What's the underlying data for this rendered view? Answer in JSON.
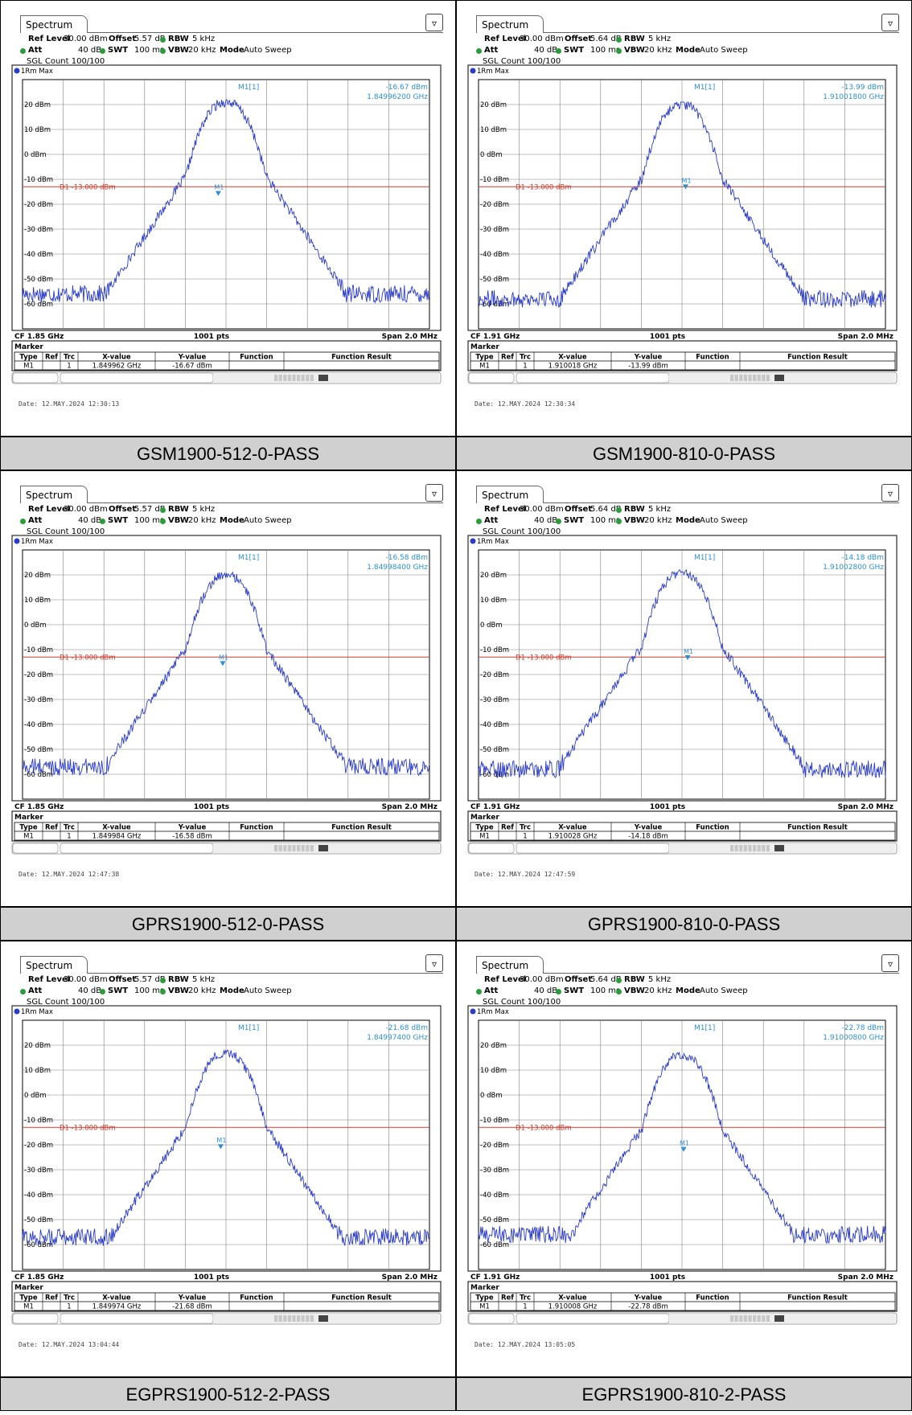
{
  "chart_data": [
    {
      "type": "line",
      "tab_label": "Spectrum",
      "ref_level": "30.00 dBm",
      "offset": "5.57 dB",
      "rbw": "5 kHz",
      "att": "40 dB",
      "swt": "100 ms",
      "vbw": "20 kHz",
      "mode": "Auto Sweep",
      "sgl_count": "SGL Count 100/100",
      "trace_label": "1Rm Max",
      "marker_name": "M1[1]",
      "marker_level": "-16.67 dBm",
      "marker_freq": "1.84996200 GHz",
      "limit_label": "D1  -13.000 dBm",
      "limit_dbm": -13,
      "cf": "CF 1.85 GHz",
      "pts": "1001 pts",
      "span": "Span 2.0 MHz",
      "marker_table": {
        "type": "M1",
        "ref": "",
        "trc": "1",
        "x": "1.849962 GHz",
        "y": "-16.67 dBm",
        "function": "",
        "result": ""
      },
      "date": "Date: 12.MAY.2024  12:30:13",
      "caption": "GSM1900-512-0-PASS",
      "center_mhz": 1850,
      "peak_offset_khz": 0,
      "peak_dbm": 21,
      "floor_dbm": -56,
      "marker_offset_khz": -38,
      "marker_dbm": -16.67
    },
    {
      "type": "line",
      "tab_label": "Spectrum",
      "ref_level": "30.00 dBm",
      "offset": "5.64 dB",
      "rbw": "5 kHz",
      "att": "40 dB",
      "swt": "100 ms",
      "vbw": "20 kHz",
      "mode": "Auto Sweep",
      "sgl_count": "SGL Count 100/100",
      "trace_label": "1Rm Max",
      "marker_name": "M1[1]",
      "marker_level": "-13.99 dBm",
      "marker_freq": "1.91001800 GHz",
      "limit_label": "D1  -13.000 dBm",
      "limit_dbm": -13,
      "cf": "CF 1.91 GHz",
      "pts": "1001 pts",
      "span": "Span 2.0 MHz",
      "marker_table": {
        "type": "M1",
        "ref": "",
        "trc": "1",
        "x": "1.910018 GHz",
        "y": "-13.99 dBm",
        "function": "",
        "result": ""
      },
      "date": "Date: 12.MAY.2024  12:30:34",
      "caption": "GSM1900-810-0-PASS",
      "center_mhz": 1910,
      "peak_offset_khz": 0,
      "peak_dbm": 20,
      "floor_dbm": -58,
      "marker_offset_khz": 18,
      "marker_dbm": -13.99
    },
    {
      "type": "line",
      "tab_label": "Spectrum",
      "ref_level": "30.00 dBm",
      "offset": "5.57 dB",
      "rbw": "5 kHz",
      "att": "40 dB",
      "swt": "100 ms",
      "vbw": "20 kHz",
      "mode": "Auto Sweep",
      "sgl_count": "SGL Count 100/100",
      "trace_label": "1Rm Max",
      "marker_name": "M1[1]",
      "marker_level": "-16.58 dBm",
      "marker_freq": "1.84998400 GHz",
      "limit_label": "D1  -13.000 dBm",
      "limit_dbm": -13,
      "cf": "CF 1.85 GHz",
      "pts": "1001 pts",
      "span": "Span 2.0 MHz",
      "marker_table": {
        "type": "M1",
        "ref": "",
        "trc": "1",
        "x": "1.849984 GHz",
        "y": "-16.58 dBm",
        "function": "",
        "result": ""
      },
      "date": "Date: 12.MAY.2024  12:47:38",
      "caption": "GPRS1900-512-0-PASS",
      "center_mhz": 1850,
      "peak_offset_khz": 0,
      "peak_dbm": 20,
      "floor_dbm": -57,
      "marker_offset_khz": -16,
      "marker_dbm": -16.58
    },
    {
      "type": "line",
      "tab_label": "Spectrum",
      "ref_level": "30.00 dBm",
      "offset": "5.64 dB",
      "rbw": "5 kHz",
      "att": "40 dB",
      "swt": "100 ms",
      "vbw": "20 kHz",
      "mode": "Auto Sweep",
      "sgl_count": "SGL Count 100/100",
      "trace_label": "1Rm Max",
      "marker_name": "M1[1]",
      "marker_level": "-14.18 dBm",
      "marker_freq": "1.91002800 GHz",
      "limit_label": "D1  -13.000 dBm",
      "limit_dbm": -13,
      "cf": "CF 1.91 GHz",
      "pts": "1001 pts",
      "span": "Span 2.0 MHz",
      "marker_table": {
        "type": "M1",
        "ref": "",
        "trc": "1",
        "x": "1.910028 GHz",
        "y": "-14.18 dBm",
        "function": "",
        "result": ""
      },
      "date": "Date: 12.MAY.2024  12:47:59",
      "caption": "GPRS1900-810-0-PASS",
      "center_mhz": 1910,
      "peak_offset_khz": 0,
      "peak_dbm": 21,
      "floor_dbm": -58,
      "marker_offset_khz": 28,
      "marker_dbm": -14.18
    },
    {
      "type": "line",
      "tab_label": "Spectrum",
      "ref_level": "30.00 dBm",
      "offset": "5.57 dB",
      "rbw": "5 kHz",
      "att": "40 dB",
      "swt": "100 ms",
      "vbw": "20 kHz",
      "mode": "Auto Sweep",
      "sgl_count": "SGL Count 100/100",
      "trace_label": "1Rm Max",
      "marker_name": "M1[1]",
      "marker_level": "-21.68 dBm",
      "marker_freq": "1.84997400 GHz",
      "limit_label": "D1  -13.000 dBm",
      "limit_dbm": -13,
      "cf": "CF 1.85 GHz",
      "pts": "1001 pts",
      "span": "Span 2.0 MHz",
      "marker_table": {
        "type": "M1",
        "ref": "",
        "trc": "1",
        "x": "1.849974 GHz",
        "y": "-21.68 dBm",
        "function": "",
        "result": ""
      },
      "date": "Date: 12.MAY.2024  13:04:44",
      "caption": "EGPRS1900-512-2-PASS",
      "center_mhz": 1850,
      "peak_offset_khz": 0,
      "peak_dbm": 17,
      "floor_dbm": -57,
      "marker_offset_khz": -26,
      "marker_dbm": -21.68
    },
    {
      "type": "line",
      "tab_label": "Spectrum",
      "ref_level": "30.00 dBm",
      "offset": "5.64 dB",
      "rbw": "5 kHz",
      "att": "40 dB",
      "swt": "100 ms",
      "vbw": "20 kHz",
      "mode": "Auto Sweep",
      "sgl_count": "SGL Count 100/100",
      "trace_label": "1Rm Max",
      "marker_name": "M1[1]",
      "marker_level": "-22.78 dBm",
      "marker_freq": "1.91000800 GHz",
      "limit_label": "D1  -13.000 dBm",
      "limit_dbm": -13,
      "cf": "CF 1.91 GHz",
      "pts": "1001 pts",
      "span": "Span 2.0 MHz",
      "marker_table": {
        "type": "M1",
        "ref": "",
        "trc": "1",
        "x": "1.910008 GHz",
        "y": "-22.78 dBm",
        "function": "",
        "result": ""
      },
      "date": "Date: 12.MAY.2024  13:05:05",
      "caption": "EGPRS1900-810-2-PASS",
      "center_mhz": 1910,
      "peak_offset_khz": 0,
      "peak_dbm": 16,
      "floor_dbm": -56,
      "marker_offset_khz": 8,
      "marker_dbm": -22.78
    }
  ],
  "axis": {
    "y_ticks": [
      "20 dBm",
      "10 dBm",
      "0 dBm",
      "-10 dBm",
      "-20 dBm",
      "-30 dBm",
      "-40 dBm",
      "-50 dBm",
      "-60 dBm"
    ],
    "y_min_dbm": -70,
    "y_max_dbm": 30,
    "span_khz": 2000
  },
  "table_headers": [
    "Type",
    "Ref",
    "Trc",
    "X-value",
    "Y-value",
    "Function",
    "Function Result"
  ],
  "marker_section_label": "Marker",
  "colors": {
    "trace": "#2a3cc8",
    "limit": "#d43a2a",
    "marker_text": "#2b8fd6",
    "grid": "#808080",
    "caption_bg": "#d0d0d0"
  }
}
